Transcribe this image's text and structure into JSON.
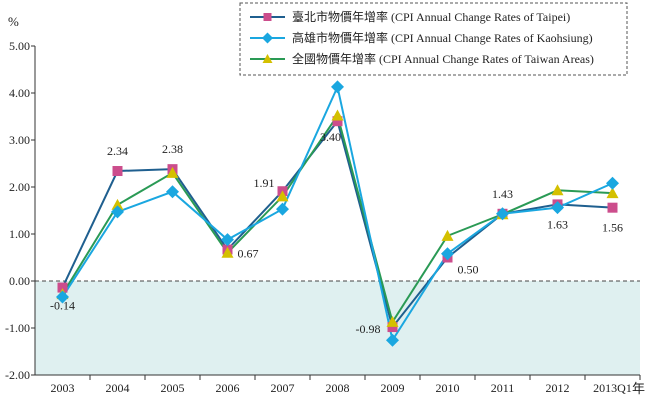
{
  "chart_data": {
    "type": "line",
    "ylabel": "%",
    "xlabel": "年",
    "ylim": [
      -2.0,
      5.0
    ],
    "yticks": [
      "5.00",
      "4.00",
      "3.00",
      "2.00",
      "1.00",
      "0.00",
      "-1.00",
      "-2.00"
    ],
    "categories": [
      "2003",
      "2004",
      "2005",
      "2006",
      "2007",
      "2008",
      "2009",
      "2010",
      "2011",
      "2012",
      "2013Q1"
    ],
    "negative_region_color": "#dff0f0",
    "legend_placement": "top-right",
    "series": [
      {
        "name": "臺北市物價年增率 (CPI Annual Change Rates of Taipei)",
        "line_color": "#1f5f8f",
        "marker_color": "#cc4d8c",
        "marker": "square",
        "values": [
          -0.14,
          2.34,
          2.38,
          0.67,
          1.91,
          3.4,
          -0.98,
          0.5,
          1.43,
          1.63,
          1.56
        ],
        "data_labels": [
          "-0.14",
          "2.34",
          "2.38",
          "0.67",
          "1.91",
          "3.40",
          "-0.98",
          "0.50",
          "1.43",
          "1.63",
          "1.56"
        ]
      },
      {
        "name": "高雄市物價年增率 (CPI Annual Change Rates of Kaohsiung)",
        "line_color": "#1aa7e0",
        "marker_color": "#1aa7e0",
        "marker": "diamond",
        "values": [
          -0.34,
          1.47,
          1.9,
          0.88,
          1.53,
          4.13,
          -1.26,
          0.58,
          1.43,
          1.56,
          2.08
        ]
      },
      {
        "name": "全國物價年增率 (CPI Annual Change Rates of Taiwan Areas)",
        "line_color": "#2a9a55",
        "marker_color": "#d4c000",
        "marker": "triangle",
        "values": [
          -0.28,
          1.62,
          2.3,
          0.6,
          1.8,
          3.52,
          -0.87,
          0.96,
          1.42,
          1.93,
          1.87
        ]
      }
    ]
  }
}
